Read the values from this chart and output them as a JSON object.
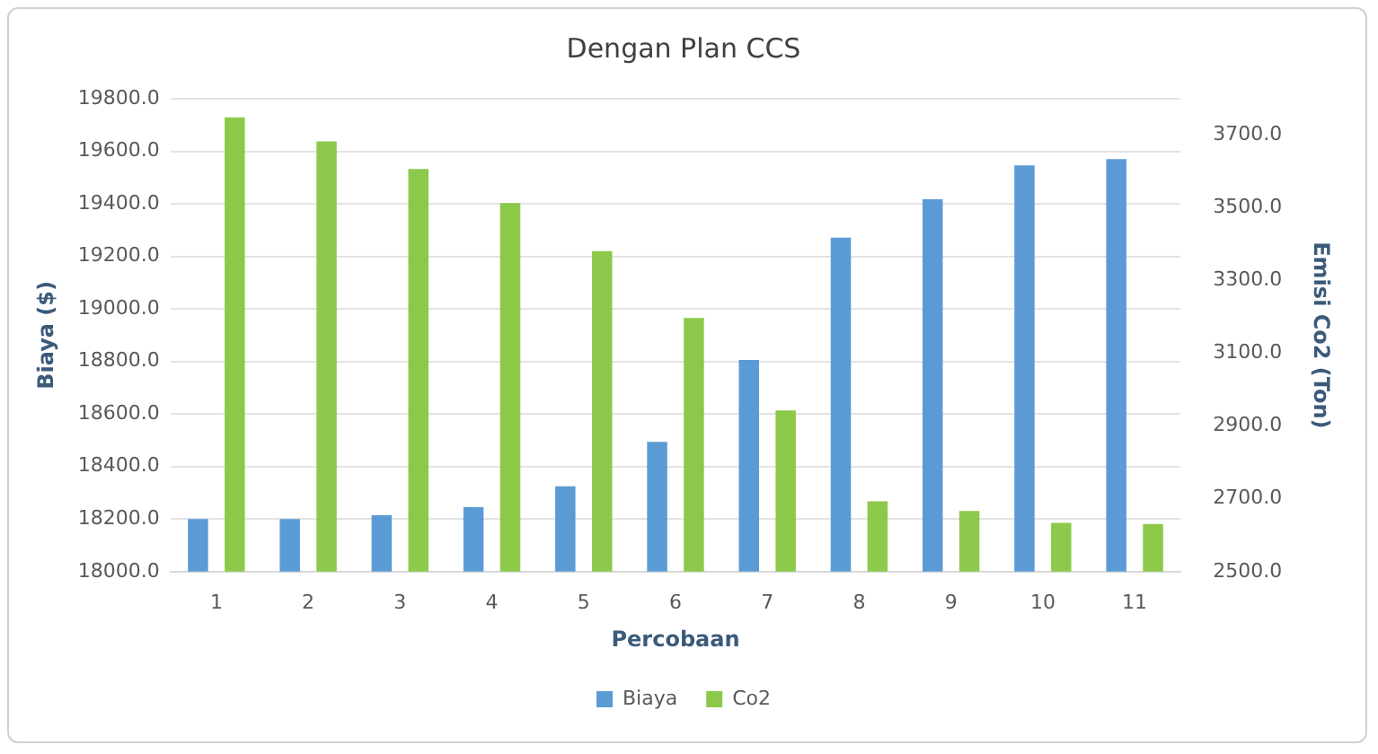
{
  "chart_data": {
    "type": "bar",
    "title": "Dengan Plan CCS",
    "xlabel": "Percobaan",
    "ylabel": "Biaya ($)",
    "y2label": "Emisi Co2 (Ton)",
    "categories": [
      "1",
      "2",
      "3",
      "4",
      "5",
      "6",
      "7",
      "8",
      "9",
      "10",
      "11"
    ],
    "series": [
      {
        "name": "Biaya",
        "color": "#5b9bd5",
        "values": [
          18200,
          18200,
          18215,
          18245,
          18325,
          18494,
          18806,
          19271,
          19417,
          19546,
          19570
        ]
      },
      {
        "name": "Co2",
        "color": "#8cc94a",
        "axis": "y2",
        "values": [
          3749,
          3683,
          3607,
          3513,
          3381,
          3197,
          2943,
          2693,
          2667,
          2634,
          2631
        ]
      }
    ],
    "ylim": [
      18000,
      19800
    ],
    "yticks": [
      {
        "value": 18000,
        "label": "18000.0"
      },
      {
        "value": 18200,
        "label": "18200.0"
      },
      {
        "value": 18400,
        "label": "18400.0"
      },
      {
        "value": 18600,
        "label": "18600.0"
      },
      {
        "value": 18800,
        "label": "18800.0"
      },
      {
        "value": 19000,
        "label": "19000.0"
      },
      {
        "value": 19200,
        "label": "19200.0"
      },
      {
        "value": 19400,
        "label": "19400.0"
      },
      {
        "value": 19600,
        "label": "19600.0"
      },
      {
        "value": 19800,
        "label": "19800.0"
      }
    ],
    "y2lim": [
      2500,
      3800
    ],
    "y2ticks": [
      {
        "value": 2500,
        "label": "2500.0"
      },
      {
        "value": 2700,
        "label": "2700.0"
      },
      {
        "value": 2900,
        "label": "2900.0"
      },
      {
        "value": 3100,
        "label": "3100.0"
      },
      {
        "value": 3300,
        "label": "3300.0"
      },
      {
        "value": 3500,
        "label": "3500.0"
      },
      {
        "value": 3700,
        "label": "3700.0"
      }
    ],
    "grid": "y",
    "legend": "bottom"
  }
}
